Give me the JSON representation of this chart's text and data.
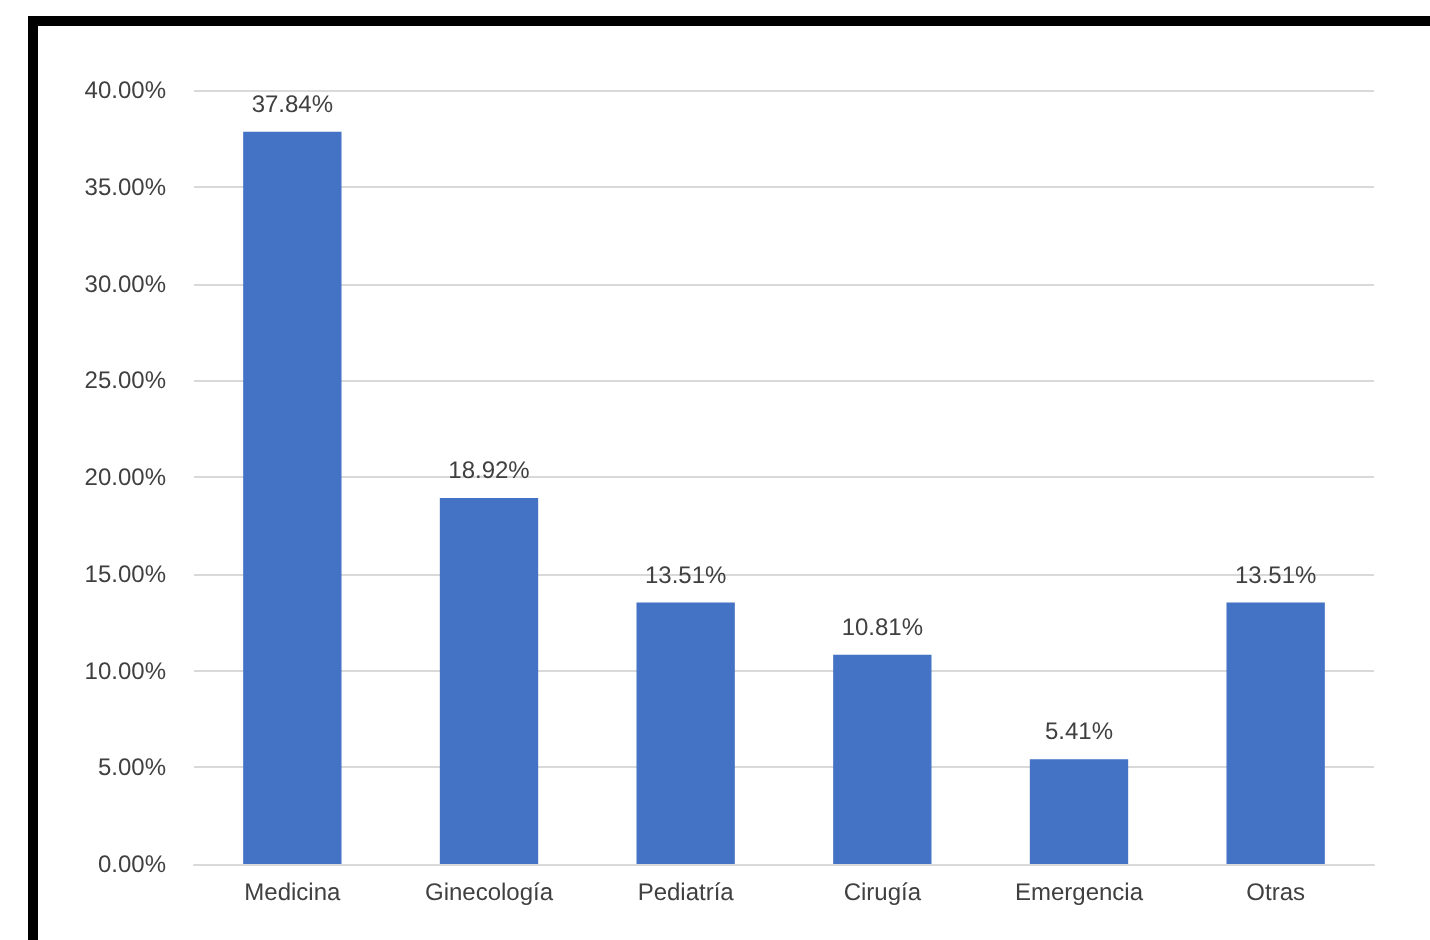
{
  "chart_data": {
    "type": "bar",
    "categories": [
      "Medicina",
      "Ginecología",
      "Pediatría",
      "Cirugía",
      "Emergencia",
      "Otras"
    ],
    "values": [
      37.84,
      18.92,
      13.51,
      10.81,
      5.41,
      13.51
    ],
    "value_labels": [
      "37.84%",
      "18.92%",
      "13.51%",
      "10.81%",
      "5.41%",
      "13.51%"
    ],
    "color": "#4472c4",
    "ylim": [
      0,
      40
    ],
    "yticks": [
      {
        "value": 0,
        "label": "0.00%"
      },
      {
        "value": 5,
        "label": "5.00%"
      },
      {
        "value": 10,
        "label": "10.00%"
      },
      {
        "value": 15,
        "label": "15.00%"
      },
      {
        "value": 20,
        "label": "20.00%"
      },
      {
        "value": 25,
        "label": "25.00%"
      },
      {
        "value": 30,
        "label": "30.00%"
      },
      {
        "value": 35,
        "label": "35.00%"
      },
      {
        "value": 40,
        "label": "40.00%"
      }
    ],
    "grid": "y"
  }
}
